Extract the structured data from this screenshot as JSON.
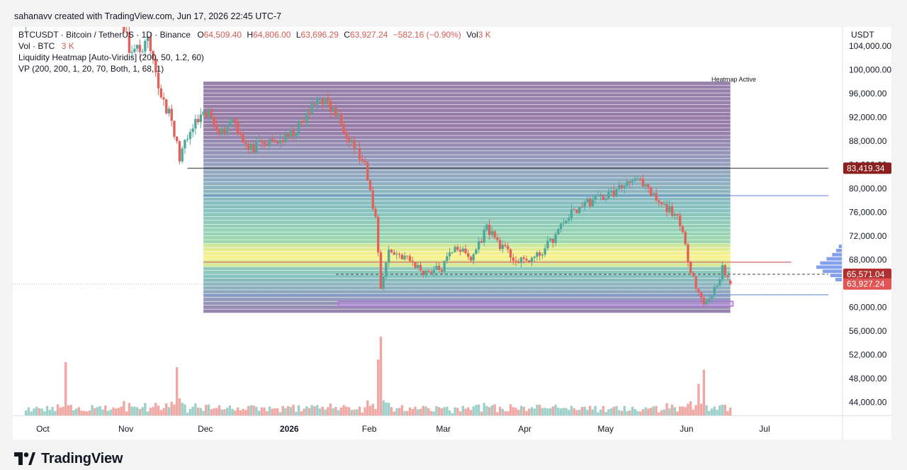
{
  "header": {
    "created_by": "sahanavv created with TradingView.com, Jun 17, 2026 22:45 UTC-7"
  },
  "legend": {
    "symbol": "BTCUSDT · Bitcoin / TetherUS · 1D · Binance",
    "o_label": "O",
    "o_value": "64,509.40",
    "h_label": "H",
    "h_value": "64,806.00",
    "l_label": "L",
    "l_value": "63,696.29",
    "c_label": "C",
    "c_value": "63,927.24",
    "change": "−582.16 (−0.90%)",
    "vol_label": "Vol",
    "vol_value": "3 K",
    "vol_row_label": "Vol · BTC",
    "vol_row_value": "3 K",
    "heatmap": "Liquidity Heatmap [Auto-Viridis] (200, 50, 1.2, 60)",
    "vp": "VP (200, 200, 1, 20, 70, Both, 1, 68, 1)"
  },
  "footer": {
    "brand": "TradingView"
  },
  "colors": {
    "up": "#4fa89a",
    "down": "#e0625b",
    "vol_up": "#9dd0c8",
    "vol_down": "#f0a8a5",
    "resistance_tag": "#8b1e1e",
    "level_tag": "#b03030",
    "last_tag": "#e05454",
    "vp_bars": "#6f8fe8",
    "zone": "#b070d8"
  },
  "chart_data": {
    "type": "candlestick",
    "symbol": "BTCUSDT",
    "interval": "1D",
    "exchange": "Binance",
    "currency": "USDT",
    "y_axis_ticks": [
      104000,
      100000,
      96000,
      92000,
      88000,
      84000,
      80000,
      76000,
      72000,
      68000,
      64000,
      60000,
      56000,
      52000,
      48000,
      44000
    ],
    "y_axis_tick_labels": [
      "104,000.00",
      "100,000.00",
      "96,000.00",
      "92,000.00",
      "88,000.00",
      "84,000.00",
      "80,000.00",
      "76,000.00",
      "72,000.00",
      "68,000.00",
      "64,000.00",
      "60,000.00",
      "56,000.00",
      "52,000.00",
      "48,000.00",
      "44,000.00"
    ],
    "y_range": [
      41800,
      107200
    ],
    "x_axis_labels": [
      {
        "label": "Oct",
        "date": "2025-10-01"
      },
      {
        "label": "Nov",
        "date": "2025-11-01"
      },
      {
        "label": "Dec",
        "date": "2025-12-01"
      },
      {
        "label": "2026",
        "date": "2026-01-01",
        "bold": true
      },
      {
        "label": "Feb",
        "date": "2026-02-01"
      },
      {
        "label": "Mar",
        "date": "2026-03-01"
      },
      {
        "label": "Apr",
        "date": "2026-04-01"
      },
      {
        "label": "May",
        "date": "2026-05-01"
      },
      {
        "label": "Jun",
        "date": "2026-06-01"
      },
      {
        "label": "Jul",
        "date": "2026-07-01"
      }
    ],
    "x_range": [
      "2025-09-20",
      "2026-07-25"
    ],
    "price_tags": [
      {
        "value": 83419.34,
        "label": "83,419.34",
        "kind": "resistance"
      },
      {
        "value": 65571.04,
        "label": "65,571.04",
        "kind": "level"
      },
      {
        "value": 63927.24,
        "label": "63,927.24",
        "kind": "last"
      }
    ],
    "key_levels": [
      {
        "price": 83419.34,
        "start": "2025-11-25",
        "end": "2026-07-25",
        "style": "solid"
      },
      {
        "price": 78800,
        "start": "2025-12-01",
        "end": "2026-07-25",
        "style": "solid-blue"
      },
      {
        "price": 67600,
        "start": "2025-12-01",
        "end": "2026-07-11",
        "style": "solid-red"
      },
      {
        "price": 65571.04,
        "start": "2026-01-20",
        "end": "2026-07-25",
        "style": "dashed"
      },
      {
        "price": 62100,
        "start": "2025-12-01",
        "end": "2026-07-25",
        "style": "solid-blue"
      }
    ],
    "heatmap": {
      "label": "Heatmap Active",
      "start": "2025-12-01",
      "end": "2026-06-18",
      "price_low": 59000,
      "price_high": 98000,
      "bands": 60
    },
    "support_zone": {
      "start": "2026-01-21",
      "end": "2026-06-19",
      "price_low": 60200,
      "price_high": 61000
    },
    "volume_profile": [
      {
        "price": 64600,
        "size": 0.25
      },
      {
        "price": 65300,
        "size": 0.45
      },
      {
        "price": 66000,
        "size": 0.75
      },
      {
        "price": 66700,
        "size": 1.0
      },
      {
        "price": 67400,
        "size": 0.85
      },
      {
        "price": 68100,
        "size": 0.6
      },
      {
        "price": 68800,
        "size": 0.38
      },
      {
        "price": 69500,
        "size": 0.22
      },
      {
        "price": 70200,
        "size": 0.12
      }
    ],
    "path_points": [
      {
        "date": "2025-09-25",
        "price": 109000
      },
      {
        "date": "2025-10-05",
        "price": 118000
      },
      {
        "date": "2025-10-10",
        "price": 112000
      },
      {
        "date": "2025-10-20",
        "price": 109500
      },
      {
        "date": "2025-10-28",
        "price": 112500
      },
      {
        "date": "2025-11-04",
        "price": 102500
      },
      {
        "date": "2025-11-10",
        "price": 104500
      },
      {
        "date": "2025-11-14",
        "price": 97000
      },
      {
        "date": "2025-11-18",
        "price": 92500
      },
      {
        "date": "2025-11-22",
        "price": 85500
      },
      {
        "date": "2025-11-28",
        "price": 91000
      },
      {
        "date": "2025-12-03",
        "price": 92500
      },
      {
        "date": "2025-12-08",
        "price": 89500
      },
      {
        "date": "2025-12-12",
        "price": 92000
      },
      {
        "date": "2025-12-18",
        "price": 86500
      },
      {
        "date": "2025-12-25",
        "price": 87500
      },
      {
        "date": "2026-01-02",
        "price": 88500
      },
      {
        "date": "2026-01-08",
        "price": 91500
      },
      {
        "date": "2026-01-14",
        "price": 95500
      },
      {
        "date": "2026-01-20",
        "price": 92500
      },
      {
        "date": "2026-01-26",
        "price": 88000
      },
      {
        "date": "2026-01-31",
        "price": 83500
      },
      {
        "date": "2026-02-04",
        "price": 75000
      },
      {
        "date": "2026-02-06",
        "price": 63500
      },
      {
        "date": "2026-02-09",
        "price": 69500
      },
      {
        "date": "2026-02-15",
        "price": 68500
      },
      {
        "date": "2026-02-22",
        "price": 66000
      },
      {
        "date": "2026-03-01",
        "price": 66500
      },
      {
        "date": "2026-03-06",
        "price": 70500
      },
      {
        "date": "2026-03-12",
        "price": 68000
      },
      {
        "date": "2026-03-18",
        "price": 73500
      },
      {
        "date": "2026-03-24",
        "price": 70000
      },
      {
        "date": "2026-03-30",
        "price": 67500
      },
      {
        "date": "2026-04-06",
        "price": 68500
      },
      {
        "date": "2026-04-12",
        "price": 71500
      },
      {
        "date": "2026-04-18",
        "price": 75500
      },
      {
        "date": "2026-04-24",
        "price": 77500
      },
      {
        "date": "2026-04-30",
        "price": 78500
      },
      {
        "date": "2026-05-06",
        "price": 79500
      },
      {
        "date": "2026-05-12",
        "price": 82000
      },
      {
        "date": "2026-05-18",
        "price": 79500
      },
      {
        "date": "2026-05-23",
        "price": 77000
      },
      {
        "date": "2026-05-28",
        "price": 76000
      },
      {
        "date": "2026-05-31",
        "price": 72000
      },
      {
        "date": "2026-06-03",
        "price": 66500
      },
      {
        "date": "2026-06-06",
        "price": 62500
      },
      {
        "date": "2026-06-08",
        "price": 60500
      },
      {
        "date": "2026-06-12",
        "price": 63000
      },
      {
        "date": "2026-06-15",
        "price": 66500
      },
      {
        "date": "2026-06-17",
        "price": 64509.4
      }
    ],
    "last_candle": {
      "date": "2026-06-18",
      "open": 64509.4,
      "high": 64806.0,
      "low": 63696.29,
      "close": 63927.24
    }
  }
}
